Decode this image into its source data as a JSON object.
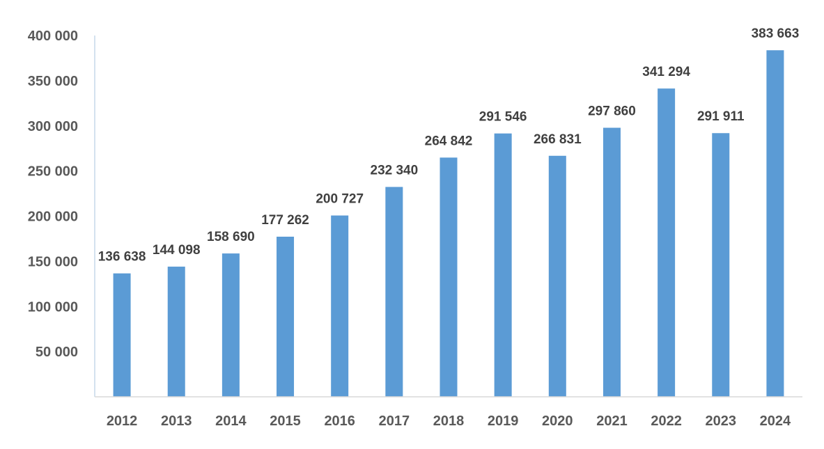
{
  "chart_data": {
    "type": "bar",
    "title": "",
    "xlabel": "",
    "ylabel": "",
    "categories": [
      "2012",
      "2013",
      "2014",
      "2015",
      "2016",
      "2017",
      "2018",
      "2019",
      "2020",
      "2021",
      "2022",
      "2023",
      "2024"
    ],
    "values": [
      136638,
      144098,
      158690,
      177262,
      200727,
      232340,
      264842,
      291546,
      266831,
      297860,
      341294,
      291911,
      383663
    ],
    "data_labels": [
      "136 638",
      "144 098",
      "158 690",
      "177 262",
      "200 727",
      "232 340",
      "264 842",
      "291 546",
      "266 831",
      "297 860",
      "341 294",
      "291 911",
      "383 663"
    ],
    "ylim": [
      0,
      400000
    ],
    "yticks": [
      50000,
      100000,
      150000,
      200000,
      250000,
      300000,
      350000,
      400000
    ],
    "ytick_labels": [
      "50 000",
      "100 000",
      "150 000",
      "200 000",
      "250 000",
      "300 000",
      "350 000",
      "400 000"
    ],
    "grid": false,
    "legend": "none",
    "colors": {
      "bar": "#5b9bd5",
      "axis": "#a9c4df",
      "tick_text": "#595959",
      "label_text": "#404040"
    }
  }
}
